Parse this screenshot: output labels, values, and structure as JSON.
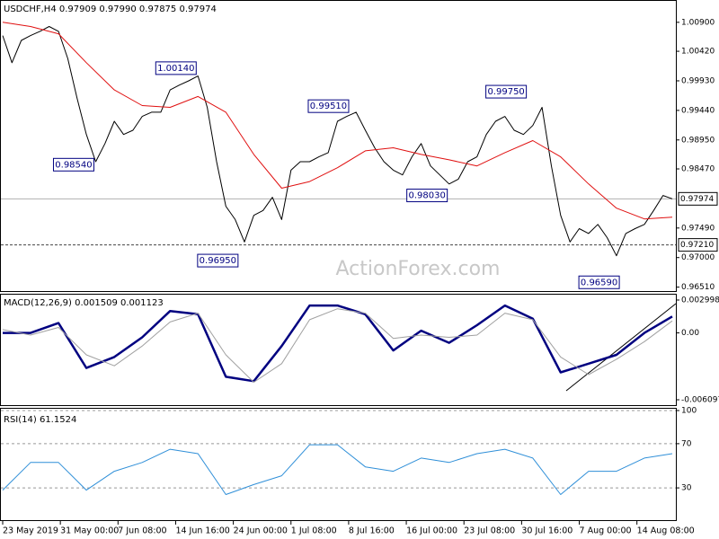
{
  "chart_data": [
    {
      "type": "line",
      "title": "USDCHF,H4 0.97909 0.97990 0.97875 0.97974",
      "watermark": "ActionForex.com",
      "xlim": [
        0,
        72
      ],
      "ylim": [
        0.9643,
        1.0127
      ],
      "yticks": [
        {
          "value": 1.009,
          "label": "1.00900"
        },
        {
          "value": 1.0042,
          "label": "1.00420"
        },
        {
          "value": 0.9993,
          "label": "0.99930"
        },
        {
          "value": 0.9944,
          "label": "0.99440"
        },
        {
          "value": 0.9895,
          "label": "0.98950"
        },
        {
          "value": 0.9847,
          "label": "0.98470"
        },
        {
          "value": 0.9749,
          "label": "0.97490"
        },
        {
          "value": 0.97,
          "label": "0.97000"
        },
        {
          "value": 0.9651,
          "label": "0.96510"
        }
      ],
      "grid": false,
      "series": [
        {
          "color": "#000000",
          "x": [
            0,
            1,
            2,
            3,
            4,
            5,
            6,
            7,
            8,
            9,
            10,
            11,
            12,
            13,
            14,
            15,
            16,
            17,
            18,
            19,
            20,
            21,
            22,
            23,
            24,
            25,
            26,
            27,
            28,
            29,
            30,
            31,
            32,
            33,
            34,
            35,
            36,
            37,
            38,
            39,
            40,
            41,
            42,
            43,
            44,
            45,
            46,
            47,
            48,
            49,
            50,
            51,
            52,
            53,
            54,
            55,
            56,
            57,
            58,
            59,
            60,
            61,
            62,
            63,
            64,
            65,
            66,
            67,
            68,
            69,
            70,
            71,
            72
          ],
          "values": [
            1.0068,
            1.0023,
            1.006,
            1.0068,
            1.0075,
            1.0083,
            1.0075,
            1.003,
            0.9964,
            0.9904,
            0.9859,
            0.9889,
            0.9926,
            0.9904,
            0.9911,
            0.9934,
            0.9941,
            0.9941,
            0.9978,
            0.9986,
            0.9993,
            1.0001,
            0.9949,
            0.9859,
            0.9785,
            0.9763,
            0.9726,
            0.977,
            0.9778,
            0.98,
            0.9763,
            0.9845,
            0.9859,
            0.9859,
            0.9867,
            0.9874,
            0.9926,
            0.9934,
            0.9941,
            0.9911,
            0.9882,
            0.9859,
            0.9845,
            0.9837,
            0.9867,
            0.9889,
            0.9852,
            0.9837,
            0.9822,
            0.983,
            0.9859,
            0.9867,
            0.9904,
            0.9926,
            0.9934,
            0.9911,
            0.9904,
            0.9919,
            0.9949,
            0.9852,
            0.977,
            0.9726,
            0.9748,
            0.974,
            0.9755,
            0.9733,
            0.9703,
            0.974,
            0.9748,
            0.9755,
            0.9778,
            0.9803,
            0.97974
          ]
        },
        {
          "color": "#e01010",
          "x": [
            0,
            3,
            6,
            9,
            12,
            15,
            18,
            21,
            24,
            27,
            30,
            33,
            36,
            39,
            42,
            45,
            48,
            51,
            54,
            57,
            60,
            63,
            66,
            69,
            72
          ],
          "values": [
            1.009,
            1.0083,
            1.0071,
            1.0023,
            0.9978,
            0.9952,
            0.9949,
            0.9967,
            0.9941,
            0.9871,
            0.9815,
            0.9826,
            0.9849,
            0.9877,
            0.9882,
            0.9871,
            0.9862,
            0.9852,
            0.9874,
            0.9894,
            0.9867,
            0.9822,
            0.9782,
            0.9764,
            0.9767
          ]
        }
      ],
      "hlines": [
        {
          "value": 0.97974,
          "label": "0.97974"
        },
        {
          "value": 0.9721,
          "label": "0.97210"
        }
      ],
      "annotations": [
        {
          "x": 21,
          "value": 1.0014,
          "label": "1.00140"
        },
        {
          "x": 10,
          "value": 0.9854,
          "label": "0.98540"
        },
        {
          "x": 25.5,
          "value": 0.9695,
          "label": "0.96950"
        },
        {
          "x": 37.4,
          "value": 0.9951,
          "label": "0.99510"
        },
        {
          "x": 48,
          "value": 0.9803,
          "label": "0.98030"
        },
        {
          "x": 56.5,
          "value": 0.9975,
          "label": "0.99750"
        },
        {
          "x": 66.5,
          "value": 0.9659,
          "label": "0.96590"
        }
      ]
    },
    {
      "type": "line",
      "title": "MACD(12,26,9) 0.001509 0.001123",
      "xlim": [
        0,
        72
      ],
      "ylim": [
        -0.00667,
        0.00357
      ],
      "yticks": [
        0.002998,
        {
          "value": 0,
          "label": "0.00"
        },
        -0.006097
      ],
      "grid": false,
      "series": [
        {
          "color": "#000080",
          "x": [
            0,
            3,
            6,
            9,
            12,
            15,
            18,
            21,
            24,
            27,
            30,
            33,
            36,
            39,
            42,
            45,
            48,
            51,
            54,
            57,
            60,
            63,
            66,
            69,
            72
          ],
          "values": [
            0.0,
            0.0,
            0.0009,
            -0.0032,
            -0.0022,
            -0.0004,
            0.002,
            0.0017,
            -0.004,
            -0.0044,
            -0.0012,
            0.0025,
            0.0025,
            0.0017,
            -0.0016,
            0.0002,
            -0.0009,
            0.0007,
            0.0025,
            0.0013,
            -0.0036,
            -0.0028,
            -0.002,
            0.0,
            0.0015
          ]
        },
        {
          "color": "#a0a0a0",
          "x": [
            0,
            3,
            6,
            9,
            12,
            15,
            18,
            21,
            24,
            27,
            30,
            33,
            36,
            39,
            42,
            45,
            48,
            51,
            54,
            57,
            60,
            63,
            66,
            69,
            72
          ],
          "values": [
            0.0003,
            -0.0002,
            0.0005,
            -0.002,
            -0.003,
            -0.0012,
            0.001,
            0.0018,
            -0.002,
            -0.0045,
            -0.0028,
            0.0012,
            0.0022,
            0.0018,
            -0.0005,
            -0.0002,
            -0.0004,
            -0.0002,
            0.0018,
            0.0012,
            -0.0022,
            -0.0038,
            -0.0024,
            -0.0008,
            0.0011
          ]
        }
      ]
    },
    {
      "type": "line",
      "title": "RSI(14) 61.1524",
      "xlim": [
        0,
        72
      ],
      "ylim": [
        0,
        100
      ],
      "yticks": [
        30,
        70,
        100
      ],
      "grid": true,
      "xticks": [
        {
          "value": 0,
          "label": "23 May 2019"
        },
        {
          "value": 6.2,
          "label": "31 May 00:00"
        },
        {
          "value": 12.4,
          "label": "7 Jun 08:00"
        },
        {
          "value": 18.6,
          "label": "14 Jun 16:00"
        },
        {
          "value": 24.8,
          "label": "24 Jun 00:00"
        },
        {
          "value": 31,
          "label": "1 Jul 08:00"
        },
        {
          "value": 37.2,
          "label": "8 Jul 16:00"
        },
        {
          "value": 43.4,
          "label": "16 Jul 00:00"
        },
        {
          "value": 49.6,
          "label": "23 Jul 08:00"
        },
        {
          "value": 55.8,
          "label": "30 Jul 16:00"
        },
        {
          "value": 62,
          "label": "7 Aug 00:00"
        },
        {
          "value": 68.2,
          "label": "14 Aug 08:00"
        }
      ],
      "series": [
        {
          "color": "#2f8fd8",
          "x": [
            0,
            3,
            6,
            9,
            12,
            15,
            18,
            21,
            24,
            27,
            30,
            33,
            36,
            39,
            42,
            45,
            48,
            51,
            54,
            57,
            60,
            63,
            66,
            69,
            72
          ],
          "values": [
            28,
            53,
            53,
            28,
            45,
            53,
            65,
            61,
            24,
            33,
            41,
            69,
            69,
            49,
            45,
            57,
            53,
            61,
            65,
            57,
            24,
            45,
            45,
            57,
            61
          ]
        }
      ]
    }
  ]
}
